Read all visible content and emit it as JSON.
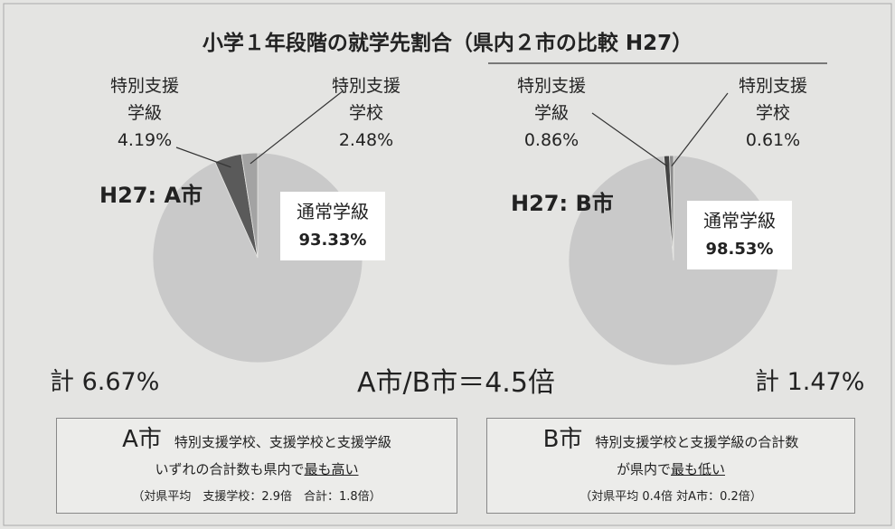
{
  "title": "小学１年段階の就学先割合（県内２市の比較 H27）",
  "chart_data": [
    {
      "type": "pie",
      "title": "H27: A市",
      "categories": [
        "通常学級",
        "特別支援学級",
        "特別支援学校"
      ],
      "values": [
        93.33,
        4.19,
        2.48
      ],
      "value_labels": [
        "93.33%",
        "4.19%",
        "2.48%"
      ],
      "colors": [
        "#c9c9c9",
        "#5a5a5a",
        "#a3a3a3"
      ],
      "total_label": "計 6.67%"
    },
    {
      "type": "pie",
      "title": "H27: B市",
      "categories": [
        "通常学級",
        "特別支援学級",
        "特別支援学校"
      ],
      "values": [
        98.53,
        0.86,
        0.61
      ],
      "value_labels": [
        "98.53%",
        "0.86%",
        "0.61%"
      ],
      "colors": [
        "#c9c9c9",
        "#444444",
        "#8a8a8a"
      ],
      "total_label": "計 1.47%"
    }
  ],
  "ratio": "A市/B市＝4.5倍",
  "notes": [
    {
      "city": "A市",
      "line1": "特別支援学校、支援学校と支援学級",
      "line2": "いずれの合計数も県内で",
      "emphasis": "最も高い",
      "detail": "（対県平均　支援学校：2.9倍　合計：1.8倍）"
    },
    {
      "city": "B市",
      "line1": "特別支援学校と支援学級の合計数",
      "line2": "が県内で",
      "emphasis": "最も低い",
      "detail": "（対県平均 0.4倍 対A市：0.2倍）"
    }
  ]
}
